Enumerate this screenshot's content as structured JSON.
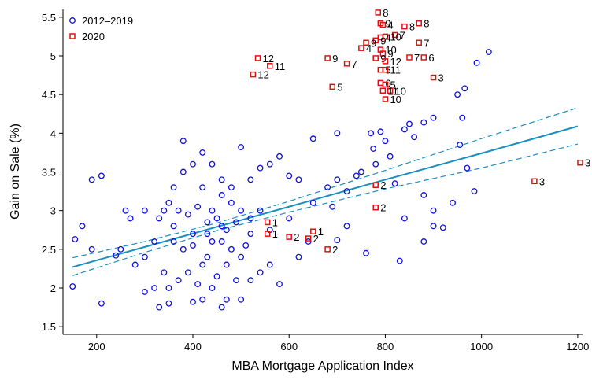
{
  "chart_data": {
    "type": "scatter",
    "x_label": "MBA Mortgage Application Index",
    "y_label": "Gain on Sale (%)",
    "xlim": [
      130,
      1210
    ],
    "ylim": [
      1.4,
      5.6
    ],
    "xticks": [
      200,
      400,
      600,
      800,
      1000,
      1200
    ],
    "yticks": [
      1.5,
      2,
      2.5,
      3,
      3.5,
      4,
      4.5,
      5,
      5.5
    ],
    "legend": "upper-left",
    "series": [
      {
        "name": "2012–2019",
        "color": "#1010e0",
        "marker": "circle",
        "x": [
          1015,
          990,
          950,
          965,
          900,
          960,
          955,
          970,
          985,
          850,
          840,
          800,
          790,
          770,
          860,
          880,
          775,
          810,
          750,
          700,
          740,
          680,
          650,
          900,
          920,
          880,
          840,
          830,
          760,
          720,
          700,
          640,
          620,
          600,
          580,
          560,
          540,
          500,
          520,
          560,
          580,
          500,
          520,
          470,
          460,
          440,
          420,
          400,
          350,
          330,
          210,
          150,
          155,
          170,
          190,
          210,
          190,
          240,
          260,
          270,
          300,
          320,
          340,
          360,
          380,
          400,
          420,
          440,
          460,
          480,
          500,
          520,
          540,
          300,
          320,
          340,
          360,
          380,
          400,
          420,
          440,
          460,
          480,
          500,
          520,
          350,
          370,
          390,
          410,
          430,
          450,
          470,
          490,
          330,
          350,
          370,
          390,
          410,
          430,
          450,
          470,
          490,
          380,
          420,
          440,
          460,
          480,
          300,
          280,
          250,
          360,
          400,
          430,
          460,
          510,
          540,
          560,
          600,
          650,
          690,
          720,
          780,
          820,
          900,
          940,
          880,
          700,
          620
        ],
        "y": [
          5.05,
          4.91,
          4.5,
          4.58,
          4.2,
          4.2,
          3.85,
          3.55,
          3.25,
          4.12,
          4.05,
          3.9,
          4.02,
          4.0,
          3.95,
          4.14,
          3.8,
          3.7,
          3.5,
          3.4,
          3.45,
          3.3,
          3.93,
          2.8,
          2.78,
          3.2,
          2.9,
          2.35,
          2.45,
          2.8,
          2.62,
          2.6,
          3.4,
          3.45,
          3.7,
          3.6,
          3.55,
          3.82,
          3.4,
          2.3,
          2.05,
          1.85,
          2.1,
          1.85,
          1.75,
          2.0,
          1.85,
          1.82,
          1.8,
          1.75,
          1.8,
          2.02,
          2.63,
          2.8,
          3.4,
          3.45,
          2.5,
          2.42,
          3.0,
          2.9,
          3.0,
          2.0,
          3.0,
          3.3,
          3.5,
          3.6,
          3.3,
          3.0,
          3.2,
          3.1,
          3.0,
          2.9,
          3.0,
          2.4,
          2.6,
          2.2,
          2.8,
          2.5,
          2.7,
          2.3,
          2.6,
          2.8,
          2.5,
          2.4,
          2.7,
          2.0,
          2.1,
          2.2,
          2.05,
          2.4,
          2.15,
          2.3,
          2.1,
          2.9,
          3.1,
          3.0,
          2.95,
          3.05,
          2.85,
          2.9,
          2.75,
          2.85,
          3.9,
          3.75,
          3.6,
          3.4,
          3.3,
          1.95,
          2.3,
          2.5,
          2.6,
          2.55,
          2.7,
          2.6,
          2.55,
          2.2,
          2.75,
          2.9,
          3.1,
          3.05,
          3.25,
          3.6,
          3.35,
          3.0,
          3.1,
          2.6,
          4.0,
          2.4
        ]
      },
      {
        "name": "2020",
        "color": "#e01010",
        "marker": "square",
        "x": [
          785,
          790,
          795,
          870,
          840,
          820,
          800,
          790,
          780,
          760,
          870,
          750,
          790,
          795,
          780,
          680,
          535,
          560,
          525,
          720,
          800,
          850,
          880,
          790,
          800,
          900,
          790,
          800,
          810,
          795,
          690,
          800,
          780,
          780,
          1110,
          1205,
          555,
          555,
          600,
          650,
          640,
          680
        ],
        "y": [
          5.56,
          5.42,
          5.4,
          5.42,
          5.38,
          5.27,
          5.25,
          5.24,
          5.2,
          5.17,
          5.17,
          5.1,
          5.08,
          5.03,
          4.97,
          4.97,
          4.97,
          4.87,
          4.76,
          4.9,
          4.93,
          4.98,
          4.98,
          4.82,
          4.82,
          4.72,
          4.65,
          4.63,
          4.55,
          4.55,
          4.6,
          4.44,
          3.33,
          3.04,
          3.38,
          3.62,
          2.85,
          2.7,
          2.66,
          2.73,
          2.64,
          2.5
        ],
        "labels": [
          "8",
          "9",
          "4",
          "8",
          "8",
          "7",
          "10",
          "4",
          "9",
          "9",
          "7",
          "4",
          "10",
          "9",
          "9",
          "9",
          "12",
          "11",
          "12",
          "7",
          "12",
          "7",
          "6",
          "5",
          "11",
          "3",
          "6",
          "5",
          "10",
          "11",
          "5",
          "10",
          "2",
          "2",
          "3",
          "3",
          "1",
          "1",
          "2",
          "1",
          "2",
          "2"
        ]
      }
    ],
    "fit": {
      "color": "#1a8fbf",
      "x": [
        150,
        300,
        450,
        600,
        800,
        1000,
        1200
      ],
      "y": [
        2.27,
        2.53,
        2.79,
        3.05,
        3.4,
        3.74,
        4.09
      ],
      "upper": [
        2.39,
        2.6,
        2.84,
        3.12,
        3.52,
        3.93,
        4.33
      ],
      "lower": [
        2.16,
        2.46,
        2.74,
        2.98,
        3.28,
        3.55,
        3.86
      ]
    }
  }
}
